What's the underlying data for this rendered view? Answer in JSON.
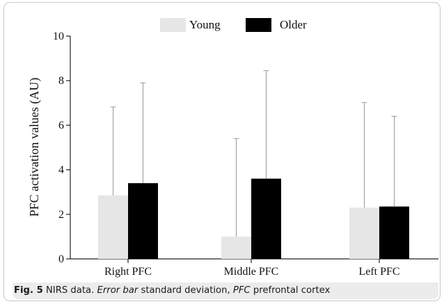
{
  "chart_data": {
    "type": "bar",
    "categories": [
      "Right PFC",
      "Middle PFC",
      "Left PFC"
    ],
    "series": [
      {
        "name": "Young",
        "color": "#e6e6e6",
        "values": [
          2.85,
          1.0,
          2.3
        ],
        "error": [
          3.97,
          4.4,
          4.72
        ]
      },
      {
        "name": "Older",
        "color": "#000000",
        "values": [
          3.4,
          3.6,
          2.35
        ],
        "error": [
          4.5,
          4.85,
          4.05
        ]
      }
    ],
    "ylabel": "PFC activation values (AU)",
    "xlabel": "",
    "ylim": [
      0,
      10
    ],
    "yticks": [
      "0",
      "2",
      "4",
      "6",
      "8",
      "10"
    ],
    "error_bar_color": "#9a9a9a",
    "grid": false,
    "legend_position": "top-center"
  },
  "caption": {
    "label": "Fig. 5",
    "text_1": "NIRS data.",
    "em_1": "Error bar",
    "text_2": "standard deviation,",
    "em_2": "PFC",
    "text_3": "prefrontal cortex"
  }
}
